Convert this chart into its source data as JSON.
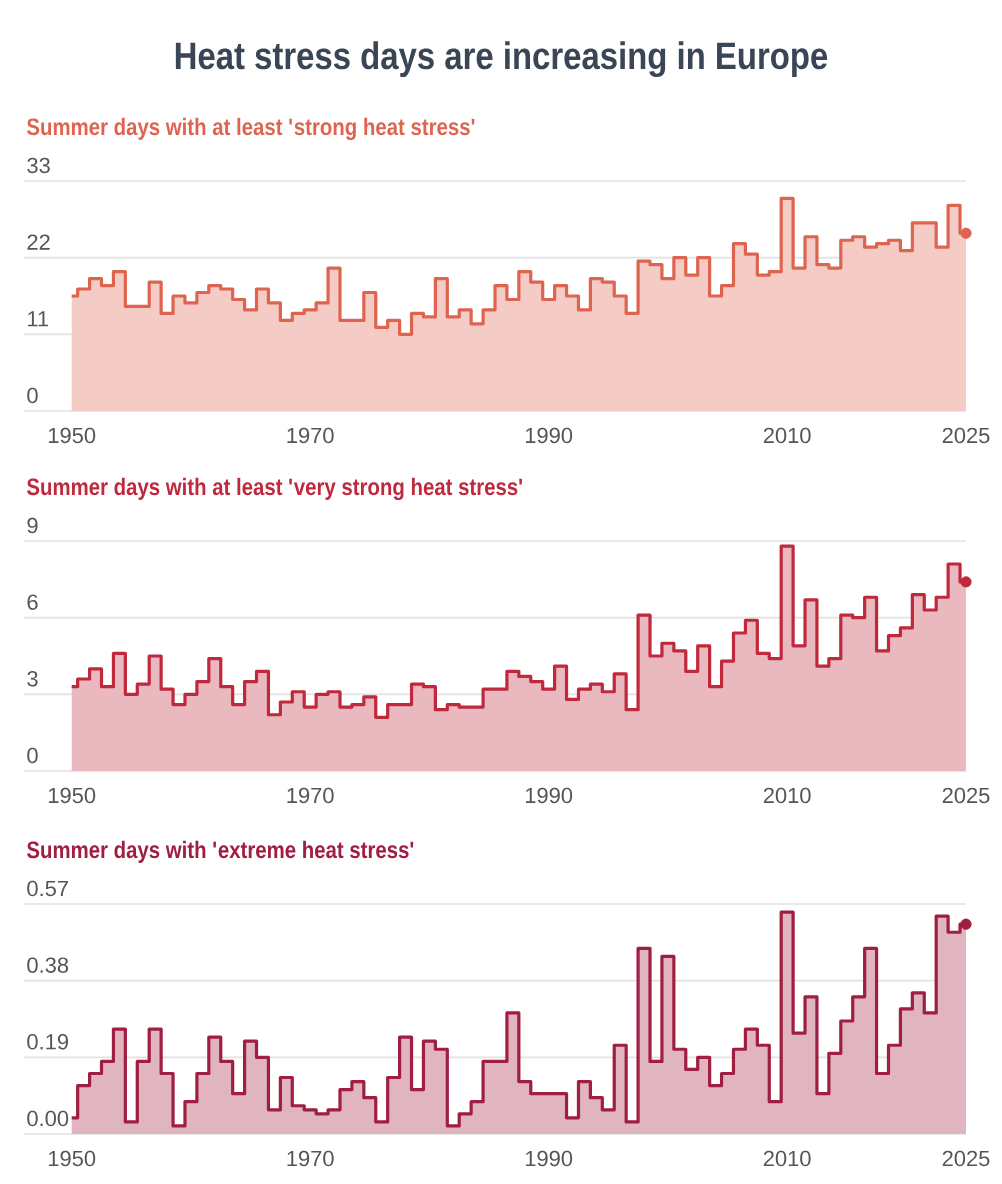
{
  "chart_data": [
    {
      "type": "area",
      "title": "Heat stress days are increasing in Europe",
      "subtitle": "Summer days with at least 'strong heat stress'",
      "x": [
        1950,
        1951,
        1952,
        1953,
        1954,
        1955,
        1956,
        1957,
        1958,
        1959,
        1960,
        1961,
        1962,
        1963,
        1964,
        1965,
        1966,
        1967,
        1968,
        1969,
        1970,
        1971,
        1972,
        1973,
        1974,
        1975,
        1976,
        1977,
        1978,
        1979,
        1980,
        1981,
        1982,
        1983,
        1984,
        1985,
        1986,
        1987,
        1988,
        1989,
        1990,
        1991,
        1992,
        1993,
        1994,
        1995,
        1996,
        1997,
        1998,
        1999,
        2000,
        2001,
        2002,
        2003,
        2004,
        2005,
        2006,
        2007,
        2008,
        2009,
        2010,
        2011,
        2012,
        2013,
        2014,
        2015,
        2016,
        2017,
        2018,
        2019,
        2020,
        2021,
        2022,
        2023,
        2024,
        2025
      ],
      "series": [
        {
          "color": "#df6450",
          "values": [
            16.5,
            17.5,
            19,
            18,
            20,
            15,
            15,
            18.5,
            14,
            16.5,
            15.5,
            17,
            18,
            17.5,
            16,
            14.5,
            17.5,
            15.5,
            13,
            14,
            14.5,
            15.5,
            20.5,
            13,
            13,
            17,
            12,
            13,
            11,
            14,
            13.5,
            19,
            13.5,
            14.5,
            12.5,
            14.5,
            18,
            16,
            20,
            18.5,
            16,
            18,
            16.5,
            14.5,
            19,
            18.5,
            16.5,
            14,
            21.5,
            21,
            19,
            22,
            19.5,
            22,
            16.5,
            18,
            24,
            22.5,
            19.5,
            20,
            30.5,
            20.5,
            25,
            21,
            20.5,
            24.5,
            25,
            23.5,
            24,
            24.5,
            23,
            27,
            27,
            23.5,
            29.5,
            25.5
          ]
        },
        {
          "type": "scatter",
          "color": "#df6450",
          "marker": "circle",
          "values": [
            null,
            null,
            null,
            null,
            null,
            null,
            null,
            null,
            null,
            null,
            null,
            null,
            null,
            null,
            null,
            null,
            null,
            null,
            null,
            null,
            null,
            null,
            null,
            null,
            null,
            null,
            null,
            null,
            null,
            null,
            null,
            null,
            null,
            null,
            null,
            null,
            null,
            null,
            null,
            null,
            null,
            null,
            null,
            null,
            null,
            null,
            null,
            null,
            null,
            null,
            null,
            null,
            null,
            null,
            null,
            null,
            null,
            null,
            null,
            null,
            null,
            null,
            null,
            null,
            null,
            null,
            null,
            null,
            null,
            null,
            null,
            null,
            null,
            null,
            null,
            25.5
          ]
        }
      ],
      "xlim": [
        1946,
        2025
      ],
      "xticks": [
        1950,
        1970,
        1990,
        2010,
        2025
      ],
      "ylim": [
        0,
        33
      ],
      "yticks": [
        0,
        11,
        22,
        33
      ],
      "grid": "y"
    },
    {
      "type": "area",
      "title": "Summer days with at least 'very strong heat stress'",
      "x": [
        1950,
        1951,
        1952,
        1953,
        1954,
        1955,
        1956,
        1957,
        1958,
        1959,
        1960,
        1961,
        1962,
        1963,
        1964,
        1965,
        1966,
        1967,
        1968,
        1969,
        1970,
        1971,
        1972,
        1973,
        1974,
        1975,
        1976,
        1977,
        1978,
        1979,
        1980,
        1981,
        1982,
        1983,
        1984,
        1985,
        1986,
        1987,
        1988,
        1989,
        1990,
        1991,
        1992,
        1993,
        1994,
        1995,
        1996,
        1997,
        1998,
        1999,
        2000,
        2001,
        2002,
        2003,
        2004,
        2005,
        2006,
        2007,
        2008,
        2009,
        2010,
        2011,
        2012,
        2013,
        2014,
        2015,
        2016,
        2017,
        2018,
        2019,
        2020,
        2021,
        2022,
        2023,
        2024,
        2025
      ],
      "series": [
        {
          "color": "#c0283c",
          "values": [
            3.3,
            3.6,
            4.0,
            3.3,
            4.6,
            3.0,
            3.4,
            4.5,
            3.2,
            2.6,
            3.0,
            3.5,
            4.4,
            3.3,
            2.6,
            3.5,
            3.9,
            2.2,
            2.7,
            3.1,
            2.5,
            3.0,
            3.1,
            2.5,
            2.6,
            2.9,
            2.1,
            2.6,
            2.6,
            3.4,
            3.3,
            2.4,
            2.6,
            2.5,
            2.5,
            3.2,
            3.2,
            3.9,
            3.7,
            3.5,
            3.2,
            4.1,
            2.8,
            3.2,
            3.4,
            3.1,
            3.8,
            2.4,
            6.1,
            4.5,
            5.0,
            4.7,
            3.9,
            4.9,
            3.3,
            4.3,
            5.4,
            5.9,
            4.6,
            4.4,
            8.8,
            4.9,
            6.7,
            4.1,
            4.4,
            6.1,
            6.0,
            6.8,
            4.7,
            5.3,
            5.6,
            6.9,
            6.3,
            6.8,
            8.1,
            7.4
          ]
        },
        {
          "type": "scatter",
          "color": "#c0283c",
          "marker": "circle",
          "values": [
            null,
            null,
            null,
            null,
            null,
            null,
            null,
            null,
            null,
            null,
            null,
            null,
            null,
            null,
            null,
            null,
            null,
            null,
            null,
            null,
            null,
            null,
            null,
            null,
            null,
            null,
            null,
            null,
            null,
            null,
            null,
            null,
            null,
            null,
            null,
            null,
            null,
            null,
            null,
            null,
            null,
            null,
            null,
            null,
            null,
            null,
            null,
            null,
            null,
            null,
            null,
            null,
            null,
            null,
            null,
            null,
            null,
            null,
            null,
            null,
            null,
            null,
            null,
            null,
            null,
            null,
            null,
            null,
            null,
            null,
            null,
            null,
            null,
            null,
            null,
            7.4
          ]
        }
      ],
      "xlim": [
        1946,
        2025
      ],
      "xticks": [
        1950,
        1970,
        1990,
        2010,
        2025
      ],
      "ylim": [
        0,
        9
      ],
      "yticks": [
        0,
        3,
        6,
        9
      ],
      "grid": "y"
    },
    {
      "type": "area",
      "title": "Summer days with 'extreme heat stress'",
      "x": [
        1950,
        1951,
        1952,
        1953,
        1954,
        1955,
        1956,
        1957,
        1958,
        1959,
        1960,
        1961,
        1962,
        1963,
        1964,
        1965,
        1966,
        1967,
        1968,
        1969,
        1970,
        1971,
        1972,
        1973,
        1974,
        1975,
        1976,
        1977,
        1978,
        1979,
        1980,
        1981,
        1982,
        1983,
        1984,
        1985,
        1986,
        1987,
        1988,
        1989,
        1990,
        1991,
        1992,
        1993,
        1994,
        1995,
        1996,
        1997,
        1998,
        1999,
        2000,
        2001,
        2002,
        2003,
        2004,
        2005,
        2006,
        2007,
        2008,
        2009,
        2010,
        2011,
        2012,
        2013,
        2014,
        2015,
        2016,
        2017,
        2018,
        2019,
        2020,
        2021,
        2022,
        2023,
        2024,
        2025
      ],
      "series": [
        {
          "color": "#a01e41",
          "values": [
            0.04,
            0.12,
            0.15,
            0.18,
            0.26,
            0.03,
            0.18,
            0.26,
            0.15,
            0.02,
            0.08,
            0.15,
            0.24,
            0.18,
            0.1,
            0.23,
            0.19,
            0.06,
            0.14,
            0.07,
            0.06,
            0.05,
            0.06,
            0.11,
            0.13,
            0.09,
            0.03,
            0.14,
            0.24,
            0.11,
            0.23,
            0.21,
            0.02,
            0.05,
            0.08,
            0.18,
            0.18,
            0.3,
            0.13,
            0.1,
            0.1,
            0.1,
            0.04,
            0.13,
            0.09,
            0.06,
            0.22,
            0.03,
            0.46,
            0.18,
            0.44,
            0.21,
            0.16,
            0.19,
            0.12,
            0.15,
            0.21,
            0.26,
            0.22,
            0.08,
            0.55,
            0.25,
            0.34,
            0.1,
            0.2,
            0.28,
            0.34,
            0.46,
            0.15,
            0.22,
            0.31,
            0.35,
            0.3,
            0.54,
            0.5,
            0.52
          ]
        },
        {
          "type": "scatter",
          "color": "#a01e41",
          "marker": "circle",
          "values": [
            null,
            null,
            null,
            null,
            null,
            null,
            null,
            null,
            null,
            null,
            null,
            null,
            null,
            null,
            null,
            null,
            null,
            null,
            null,
            null,
            null,
            null,
            null,
            null,
            null,
            null,
            null,
            null,
            null,
            null,
            null,
            null,
            null,
            null,
            null,
            null,
            null,
            null,
            null,
            null,
            null,
            null,
            null,
            null,
            null,
            null,
            null,
            null,
            null,
            null,
            null,
            null,
            null,
            null,
            null,
            null,
            null,
            null,
            null,
            null,
            null,
            null,
            null,
            null,
            null,
            null,
            null,
            null,
            null,
            null,
            null,
            null,
            null,
            null,
            null,
            0.52
          ]
        }
      ],
      "xlim": [
        1946,
        2025
      ],
      "xticks": [
        1950,
        1970,
        1990,
        2010,
        2025
      ],
      "ylim": [
        0,
        0.57
      ],
      "yticks": [
        {
          "value": 0,
          "label": "0.00"
        },
        0.19,
        0.38,
        0.57
      ],
      "grid": "y"
    }
  ]
}
